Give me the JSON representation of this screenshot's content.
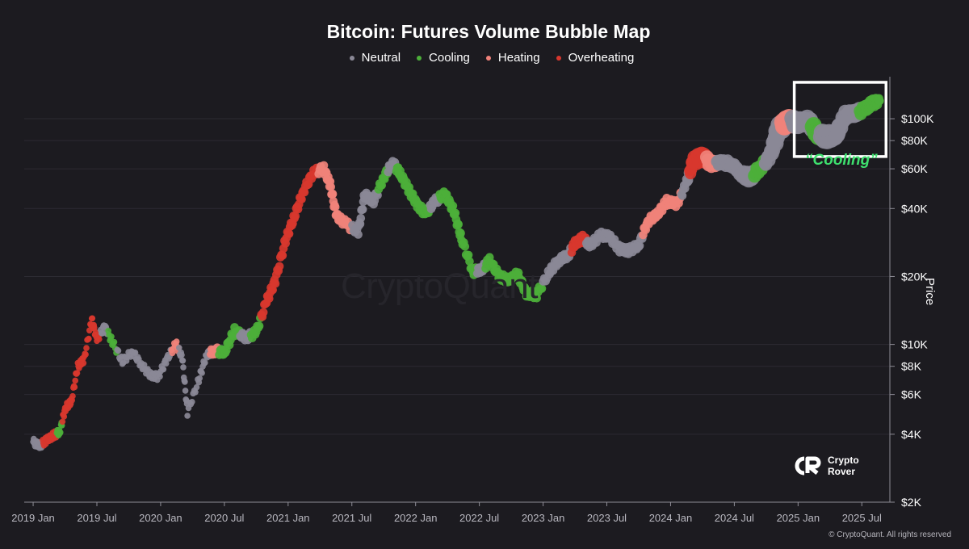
{
  "chart_data": {
    "type": "scatter",
    "title": "Bitcoin: Futures Volume Bubble Map",
    "legend": [
      {
        "name": "Neutral",
        "color": "#8a8896"
      },
      {
        "name": "Cooling",
        "color": "#4caf3a"
      },
      {
        "name": "Heating",
        "color": "#f0827a"
      },
      {
        "name": "Overheating",
        "color": "#d8372e"
      }
    ],
    "ylabel": "Price",
    "yscale": "log",
    "ylim": [
      2000,
      160000
    ],
    "xlim": [
      2018.93,
      2025.72
    ],
    "x_ticks": [
      {
        "label": "2019 Jan",
        "value": 2019.0
      },
      {
        "label": "2019 Jul",
        "value": 2019.5
      },
      {
        "label": "2020 Jan",
        "value": 2020.0
      },
      {
        "label": "2020 Jul",
        "value": 2020.5
      },
      {
        "label": "2021 Jan",
        "value": 2021.0
      },
      {
        "label": "2021 Jul",
        "value": 2021.5
      },
      {
        "label": "2022 Jan",
        "value": 2022.0
      },
      {
        "label": "2022 Jul",
        "value": 2022.5
      },
      {
        "label": "2023 Jan",
        "value": 2023.0
      },
      {
        "label": "2023 Jul",
        "value": 2023.5
      },
      {
        "label": "2024 Jan",
        "value": 2024.0
      },
      {
        "label": "2024 Jul",
        "value": 2024.5
      },
      {
        "label": "2025 Jan",
        "value": 2025.0
      },
      {
        "label": "2025 Jul",
        "value": 2025.5
      }
    ],
    "y_ticks": [
      {
        "label": "$2K",
        "value": 2000
      },
      {
        "label": "$4K",
        "value": 4000
      },
      {
        "label": "$6K",
        "value": 6000
      },
      {
        "label": "$8K",
        "value": 8000
      },
      {
        "label": "$10K",
        "value": 10000
      },
      {
        "label": "$20K",
        "value": 20000
      },
      {
        "label": "$40K",
        "value": 40000
      },
      {
        "label": "$60K",
        "value": 60000
      },
      {
        "label": "$80K",
        "value": 80000
      },
      {
        "label": "$100K",
        "value": 100000
      }
    ],
    "points": [
      {
        "t": 2019.0,
        "p": 3700,
        "s": "Neutral",
        "v": 1
      },
      {
        "t": 2019.05,
        "p": 3550,
        "s": "Neutral",
        "v": 1
      },
      {
        "t": 2019.1,
        "p": 3750,
        "s": "Overheating",
        "v": 1
      },
      {
        "t": 2019.16,
        "p": 3950,
        "s": "Overheating",
        "v": 1
      },
      {
        "t": 2019.21,
        "p": 4100,
        "s": "Cooling",
        "v": 1
      },
      {
        "t": 2019.25,
        "p": 5200,
        "s": "Overheating",
        "v": 1
      },
      {
        "t": 2019.3,
        "p": 5600,
        "s": "Overheating",
        "v": 1
      },
      {
        "t": 2019.35,
        "p": 8000,
        "s": "Overheating",
        "v": 1
      },
      {
        "t": 2019.4,
        "p": 8600,
        "s": "Overheating",
        "v": 1
      },
      {
        "t": 2019.46,
        "p": 12900,
        "s": "Overheating",
        "v": 1
      },
      {
        "t": 2019.5,
        "p": 10500,
        "s": "Overheating",
        "v": 1
      },
      {
        "t": 2019.56,
        "p": 12000,
        "s": "Neutral",
        "v": 1
      },
      {
        "t": 2019.62,
        "p": 10300,
        "s": "Cooling",
        "v": 1
      },
      {
        "t": 2019.7,
        "p": 8400,
        "s": "Neutral",
        "v": 1
      },
      {
        "t": 2019.78,
        "p": 9300,
        "s": "Neutral",
        "v": 1
      },
      {
        "t": 2019.85,
        "p": 8100,
        "s": "Neutral",
        "v": 1
      },
      {
        "t": 2019.92,
        "p": 7300,
        "s": "Neutral",
        "v": 1
      },
      {
        "t": 2019.98,
        "p": 7200,
        "s": "Neutral",
        "v": 1
      },
      {
        "t": 2020.05,
        "p": 8600,
        "s": "Neutral",
        "v": 1
      },
      {
        "t": 2020.12,
        "p": 10100,
        "s": "Heating",
        "v": 1
      },
      {
        "t": 2020.17,
        "p": 8700,
        "s": "Neutral",
        "v": 1
      },
      {
        "t": 2020.21,
        "p": 5000,
        "s": "Neutral",
        "v": 1
      },
      {
        "t": 2020.3,
        "p": 7000,
        "s": "Neutral",
        "v": 1
      },
      {
        "t": 2020.36,
        "p": 9000,
        "s": "Neutral",
        "v": 1
      },
      {
        "t": 2020.42,
        "p": 9400,
        "s": "Heating",
        "v": 2
      },
      {
        "t": 2020.5,
        "p": 9200,
        "s": "Cooling",
        "v": 2
      },
      {
        "t": 2020.58,
        "p": 11500,
        "s": "Cooling",
        "v": 2
      },
      {
        "t": 2020.67,
        "p": 10700,
        "s": "Neutral",
        "v": 2
      },
      {
        "t": 2020.75,
        "p": 11300,
        "s": "Cooling",
        "v": 2
      },
      {
        "t": 2020.83,
        "p": 15500,
        "s": "Overheating",
        "v": 2
      },
      {
        "t": 2020.9,
        "p": 19200,
        "s": "Overheating",
        "v": 2
      },
      {
        "t": 2020.98,
        "p": 29000,
        "s": "Overheating",
        "v": 2
      },
      {
        "t": 2021.05,
        "p": 37000,
        "s": "Overheating",
        "v": 2
      },
      {
        "t": 2021.12,
        "p": 48000,
        "s": "Overheating",
        "v": 2
      },
      {
        "t": 2021.2,
        "p": 58000,
        "s": "Overheating",
        "v": 2
      },
      {
        "t": 2021.28,
        "p": 60000,
        "s": "Heating",
        "v": 2
      },
      {
        "t": 2021.33,
        "p": 51000,
        "s": "Heating",
        "v": 2
      },
      {
        "t": 2021.38,
        "p": 37000,
        "s": "Heating",
        "v": 2
      },
      {
        "t": 2021.46,
        "p": 34000,
        "s": "Heating",
        "v": 2
      },
      {
        "t": 2021.55,
        "p": 31500,
        "s": "Neutral",
        "v": 2
      },
      {
        "t": 2021.6,
        "p": 46000,
        "s": "Neutral",
        "v": 2
      },
      {
        "t": 2021.67,
        "p": 43000,
        "s": "Neutral",
        "v": 2
      },
      {
        "t": 2021.75,
        "p": 55000,
        "s": "Cooling",
        "v": 2
      },
      {
        "t": 2021.82,
        "p": 64000,
        "s": "Neutral",
        "v": 2
      },
      {
        "t": 2021.88,
        "p": 57000,
        "s": "Cooling",
        "v": 2
      },
      {
        "t": 2021.95,
        "p": 48000,
        "s": "Cooling",
        "v": 2
      },
      {
        "t": 2022.02,
        "p": 41000,
        "s": "Cooling",
        "v": 2
      },
      {
        "t": 2022.08,
        "p": 38000,
        "s": "Cooling",
        "v": 2
      },
      {
        "t": 2022.15,
        "p": 43000,
        "s": "Neutral",
        "v": 2
      },
      {
        "t": 2022.23,
        "p": 46500,
        "s": "Cooling",
        "v": 2
      },
      {
        "t": 2022.3,
        "p": 39000,
        "s": "Cooling",
        "v": 2
      },
      {
        "t": 2022.36,
        "p": 29500,
        "s": "Cooling",
        "v": 2
      },
      {
        "t": 2022.45,
        "p": 21000,
        "s": "Cooling",
        "v": 2
      },
      {
        "t": 2022.52,
        "p": 21500,
        "s": "Neutral",
        "v": 2
      },
      {
        "t": 2022.58,
        "p": 23500,
        "s": "Cooling",
        "v": 2
      },
      {
        "t": 2022.66,
        "p": 20000,
        "s": "Cooling",
        "v": 2
      },
      {
        "t": 2022.73,
        "p": 19200,
        "s": "Cooling",
        "v": 2
      },
      {
        "t": 2022.8,
        "p": 20500,
        "s": "Cooling",
        "v": 2
      },
      {
        "t": 2022.87,
        "p": 16800,
        "s": "Cooling",
        "v": 2
      },
      {
        "t": 2022.95,
        "p": 16600,
        "s": "Cooling",
        "v": 2
      },
      {
        "t": 2023.05,
        "p": 21000,
        "s": "Neutral",
        "v": 2
      },
      {
        "t": 2023.12,
        "p": 23500,
        "s": "Neutral",
        "v": 2
      },
      {
        "t": 2023.2,
        "p": 25000,
        "s": "Neutral",
        "v": 2
      },
      {
        "t": 2023.25,
        "p": 28000,
        "s": "Overheating",
        "v": 2
      },
      {
        "t": 2023.31,
        "p": 29500,
        "s": "Overheating",
        "v": 2
      },
      {
        "t": 2023.37,
        "p": 27500,
        "s": "Neutral",
        "v": 2
      },
      {
        "t": 2023.45,
        "p": 30500,
        "s": "Neutral",
        "v": 2
      },
      {
        "t": 2023.52,
        "p": 30000,
        "s": "Neutral",
        "v": 2
      },
      {
        "t": 2023.6,
        "p": 26500,
        "s": "Neutral",
        "v": 2
      },
      {
        "t": 2023.67,
        "p": 26000,
        "s": "Neutral",
        "v": 2
      },
      {
        "t": 2023.75,
        "p": 27500,
        "s": "Neutral",
        "v": 2
      },
      {
        "t": 2023.82,
        "p": 35000,
        "s": "Heating",
        "v": 2
      },
      {
        "t": 2023.9,
        "p": 38000,
        "s": "Heating",
        "v": 2
      },
      {
        "t": 2023.97,
        "p": 43000,
        "s": "Heating",
        "v": 2
      },
      {
        "t": 2024.05,
        "p": 42000,
        "s": "Heating",
        "v": 2
      },
      {
        "t": 2024.12,
        "p": 51000,
        "s": "Neutral",
        "v": 2
      },
      {
        "t": 2024.18,
        "p": 65000,
        "s": "Overheating",
        "v": 4
      },
      {
        "t": 2024.25,
        "p": 68000,
        "s": "Overheating",
        "v": 5
      },
      {
        "t": 2024.32,
        "p": 63000,
        "s": "Heating",
        "v": 3
      },
      {
        "t": 2024.4,
        "p": 64000,
        "s": "Neutral",
        "v": 3
      },
      {
        "t": 2024.48,
        "p": 63000,
        "s": "Neutral",
        "v": 3
      },
      {
        "t": 2024.55,
        "p": 57000,
        "s": "Neutral",
        "v": 3
      },
      {
        "t": 2024.62,
        "p": 55000,
        "s": "Neutral",
        "v": 5
      },
      {
        "t": 2024.7,
        "p": 60000,
        "s": "Cooling",
        "v": 3
      },
      {
        "t": 2024.78,
        "p": 68000,
        "s": "Neutral",
        "v": 4
      },
      {
        "t": 2024.85,
        "p": 90000,
        "s": "Neutral",
        "v": 6
      },
      {
        "t": 2024.92,
        "p": 98000,
        "s": "Heating",
        "v": 6
      },
      {
        "t": 2025.0,
        "p": 96000,
        "s": "Neutral",
        "v": 5
      },
      {
        "t": 2025.08,
        "p": 98000,
        "s": "Neutral",
        "v": 5
      },
      {
        "t": 2025.15,
        "p": 86000,
        "s": "Cooling",
        "v": 5
      },
      {
        "t": 2025.22,
        "p": 83000,
        "s": "Neutral",
        "v": 6
      },
      {
        "t": 2025.3,
        "p": 85000,
        "s": "Neutral",
        "v": 5
      },
      {
        "t": 2025.37,
        "p": 104000,
        "s": "Neutral",
        "v": 4
      },
      {
        "t": 2025.45,
        "p": 106000,
        "s": "Neutral",
        "v": 4
      },
      {
        "t": 2025.52,
        "p": 110000,
        "s": "Cooling",
        "v": 3
      },
      {
        "t": 2025.58,
        "p": 117000,
        "s": "Cooling",
        "v": 3
      },
      {
        "t": 2025.64,
        "p": 120000,
        "s": "Cooling",
        "v": 2
      }
    ],
    "annotation": {
      "text": "“Cooling”",
      "t_from": 2024.97,
      "t_to": 2025.69,
      "p_from": 68000,
      "p_to": 145000
    }
  },
  "page": {
    "watermark": "CryptoQuant",
    "brand_line1": "Crypto",
    "brand_line2": "Rover",
    "copyright": "© CryptoQuant. All rights reserved"
  }
}
